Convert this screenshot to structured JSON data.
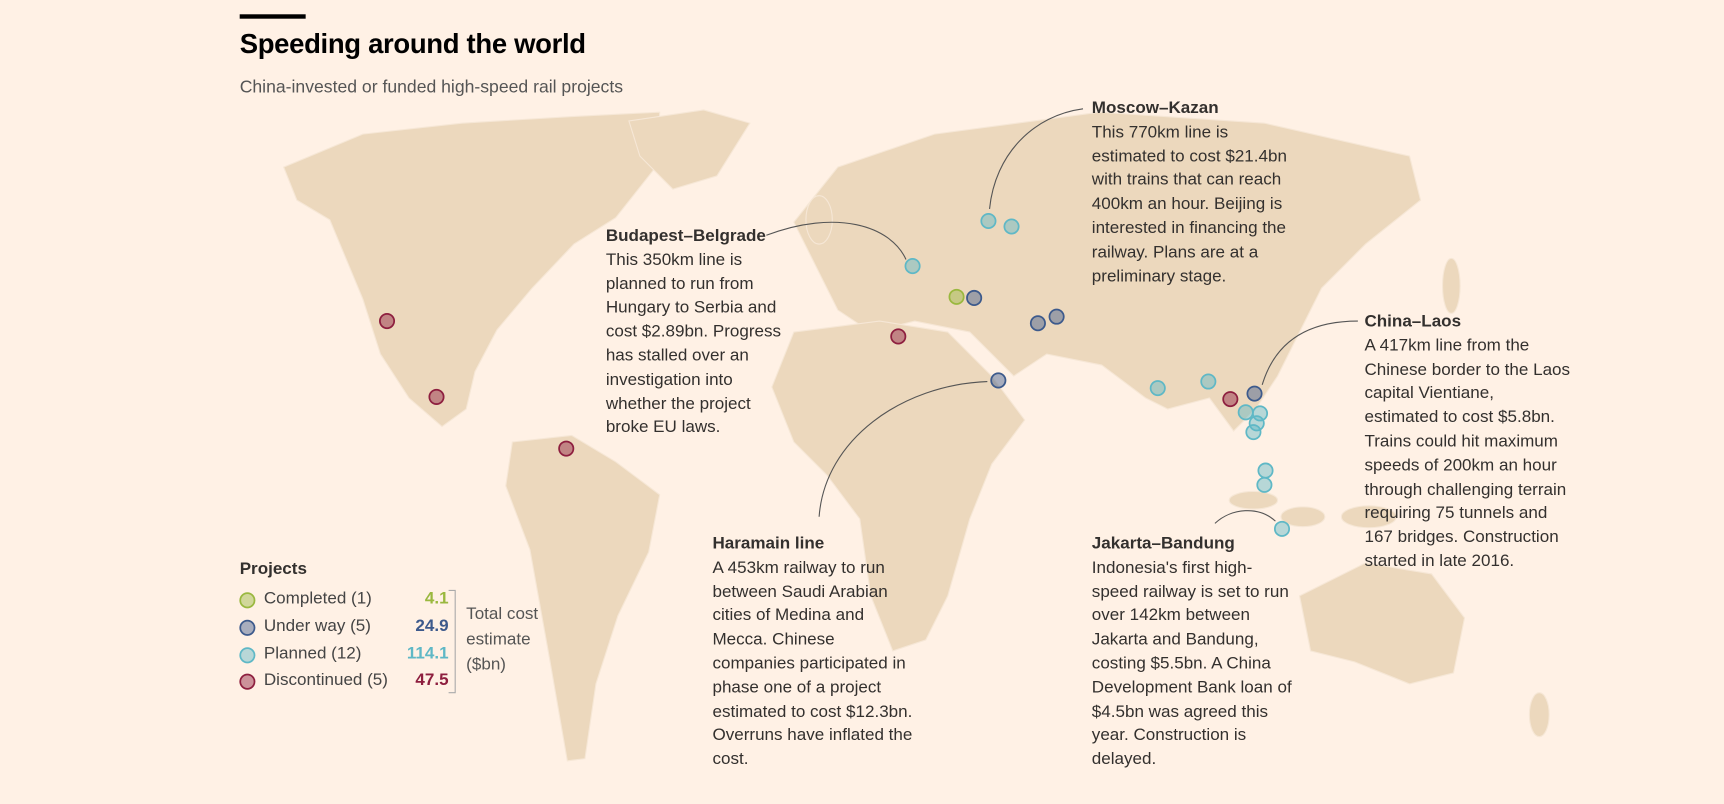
{
  "header": {
    "title": "Speeding around the world",
    "subtitle": "China-invested or funded high-speed rail projects"
  },
  "legend": {
    "title": "Projects",
    "items": [
      {
        "label": "Completed (1)",
        "value": 4.1,
        "color": "#9ab83f"
      },
      {
        "label": "Under way (5)",
        "value": 24.9,
        "color": "#3d5a8c"
      },
      {
        "label": "Planned (12)",
        "value": 114.1,
        "color": "#5fb8c6"
      },
      {
        "label": "Discontinued (5)",
        "value": 47.5,
        "color": "#8e1f3f"
      }
    ],
    "note": [
      "Total cost",
      "estimate",
      "($bn)"
    ]
  },
  "annotations": [
    {
      "heading": "Moscow–Kazan",
      "body": "This 770km line is estimated to cost $21.4bn with trains that can reach 400km an hour. Beijing is interested in financing the railway. Plans are at a preliminary stage."
    },
    {
      "heading": "Budapest–Belgrade",
      "body": "This 350km line is planned to run from Hungary to Serbia and cost $2.89bn. Progress has stalled over an investigation into whether the project broke EU laws."
    },
    {
      "heading": "China–Laos",
      "body": "A 417km line from the Chinese border to the Laos capital Vientiane, estimated to cost $5.8bn. Trains could hit maximum speeds of 200km an hour through challenging terrain requiring 75 tunnels and 167 bridges. Construction started in late 2016."
    },
    {
      "heading": "Haramain line",
      "body": "A 453km railway to run between Saudi Arabian cities of Medina and Mecca. Chinese companies participated in phase one of a project estimated to cost $12.3bn. Overruns have inflated the cost."
    },
    {
      "heading": "Jakarta–Bandung",
      "body": "Indonesia's first high-speed railway is set to run over 142km between Jakarta and Bandung, costing $5.5bn. A China Development Bank loan of $4.5bn was agreed this year. Construction is delayed."
    }
  ]
}
